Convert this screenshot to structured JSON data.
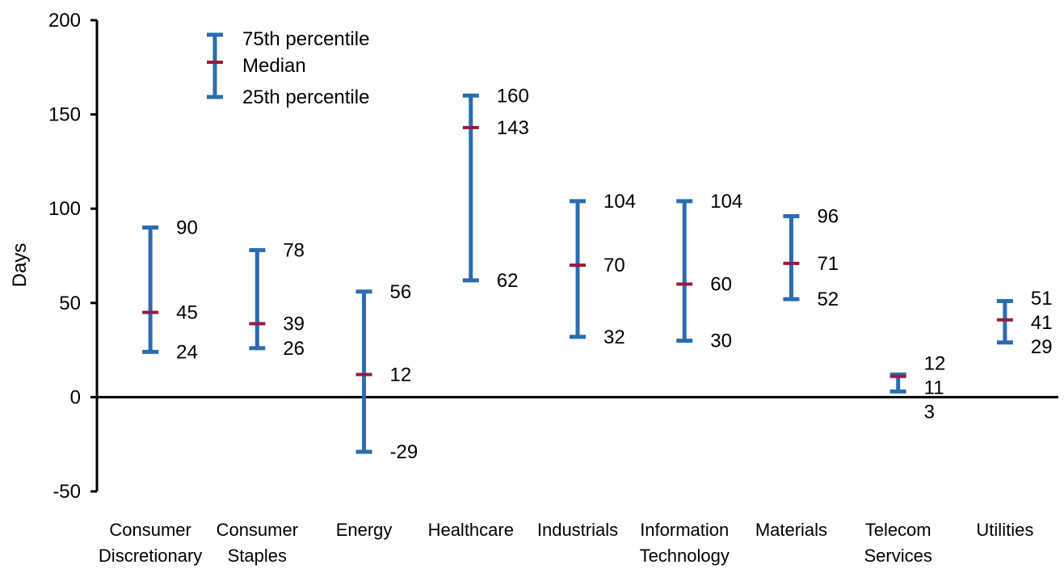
{
  "chart_data": {
    "type": "range",
    "ylabel": "Days",
    "ylim": [
      -50,
      200
    ],
    "yticks": [
      -50,
      0,
      50,
      100,
      150,
      200
    ],
    "categories": [
      [
        "Consumer",
        "Discretionary"
      ],
      [
        "Consumer",
        "Staples"
      ],
      [
        "Energy"
      ],
      [
        "Healthcare"
      ],
      [
        "Industrials"
      ],
      [
        "Information",
        "Technology"
      ],
      [
        "Materials"
      ],
      [
        "Telecom",
        "Services"
      ],
      [
        "Utilities"
      ]
    ],
    "series": [
      {
        "name": "75th percentile",
        "values": [
          90,
          78,
          56,
          160,
          104,
          104,
          96,
          12,
          51
        ]
      },
      {
        "name": "Median",
        "values": [
          45,
          39,
          12,
          143,
          70,
          60,
          71,
          11,
          41
        ]
      },
      {
        "name": "25th percentile",
        "values": [
          24,
          26,
          -29,
          62,
          32,
          30,
          52,
          3,
          29
        ]
      }
    ],
    "legend": {
      "position": "top-left",
      "entries": [
        "75th percentile",
        "Median",
        "25th percentile"
      ]
    },
    "colors": {
      "range": "#2a6db0",
      "median": "#9b1a3a",
      "axis": "#000000"
    }
  }
}
